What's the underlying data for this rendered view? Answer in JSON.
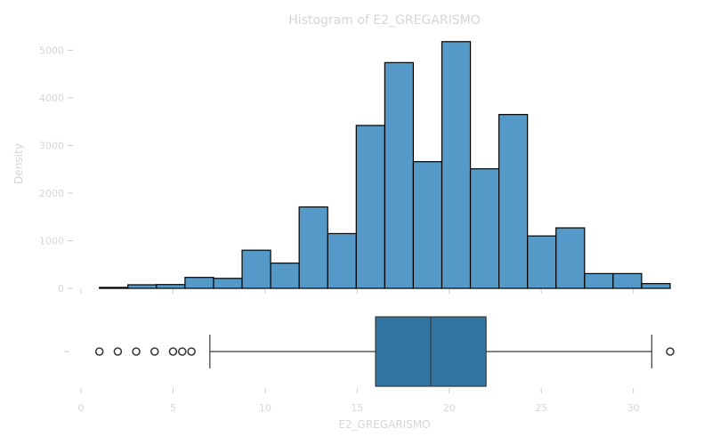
{
  "chart_data": [
    {
      "type": "bar",
      "title": "Histogram of E2_GREGARISMO",
      "xlabel": "",
      "ylabel": "Density",
      "ylim": [
        0,
        5400
      ],
      "xlim": [
        0,
        32
      ],
      "yticks": [
        0,
        1000,
        2000,
        3000,
        4000,
        5000
      ],
      "bins": [
        {
          "x0": 1.0,
          "x1": 2.55,
          "value": 20
        },
        {
          "x0": 2.55,
          "x1": 4.1,
          "value": 75
        },
        {
          "x0": 4.1,
          "x1": 5.65,
          "value": 80
        },
        {
          "x0": 5.65,
          "x1": 7.2,
          "value": 230
        },
        {
          "x0": 7.2,
          "x1": 8.75,
          "value": 210
        },
        {
          "x0": 8.75,
          "x1": 10.3,
          "value": 800
        },
        {
          "x0": 10.3,
          "x1": 11.85,
          "value": 530
        },
        {
          "x0": 11.85,
          "x1": 13.4,
          "value": 1710
        },
        {
          "x0": 13.4,
          "x1": 14.95,
          "value": 1150
        },
        {
          "x0": 14.95,
          "x1": 16.5,
          "value": 3420
        },
        {
          "x0": 16.5,
          "x1": 18.05,
          "value": 4740
        },
        {
          "x0": 18.05,
          "x1": 19.6,
          "value": 2660
        },
        {
          "x0": 19.6,
          "x1": 21.15,
          "value": 5180
        },
        {
          "x0": 21.15,
          "x1": 22.7,
          "value": 2510
        },
        {
          "x0": 22.7,
          "x1": 24.25,
          "value": 3650
        },
        {
          "x0": 24.25,
          "x1": 25.8,
          "value": 1100
        },
        {
          "x0": 25.8,
          "x1": 27.35,
          "value": 1270
        },
        {
          "x0": 27.35,
          "x1": 28.9,
          "value": 310
        },
        {
          "x0": 28.9,
          "x1": 30.45,
          "value": 310
        },
        {
          "x0": 30.45,
          "x1": 32.0,
          "value": 100
        }
      ]
    },
    {
      "type": "box",
      "xlabel": "E2_GREGARISMO",
      "xticks": [
        0,
        5,
        10,
        15,
        20,
        25,
        30
      ],
      "xlim": [
        0,
        32
      ],
      "box": {
        "whisker_low": 7,
        "q1": 16,
        "median": 19,
        "q3": 22,
        "whisker_high": 31
      },
      "outliers": [
        1,
        2,
        3,
        4,
        5,
        5.5,
        6,
        32
      ]
    }
  ],
  "colors": {
    "hist_fill": "#5599c8",
    "box_fill": "#3274a1",
    "edge": "#000000",
    "text": "#d6d6d6",
    "axis": "#cccccc",
    "whisker": "#3a3a3a"
  }
}
